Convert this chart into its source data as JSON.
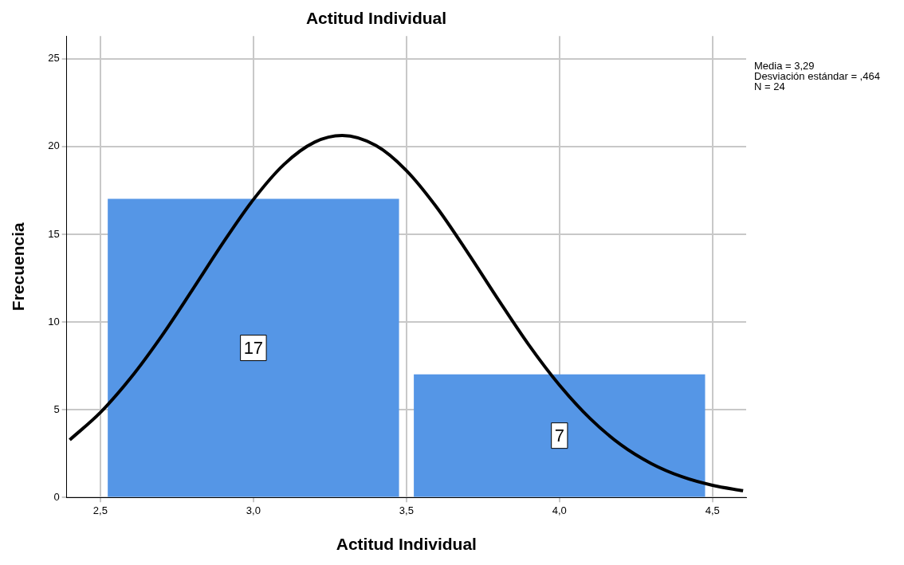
{
  "chart_data": {
    "type": "histogram",
    "title": "Actitud Individual",
    "xlabel": "Actitud Individual",
    "ylabel": "Frecuencia",
    "bins": [
      2.5,
      3.5,
      4.5
    ],
    "values": [
      17,
      7
    ],
    "color": "#5596e6",
    "value_labels": [
      "17",
      "7"
    ],
    "series": [
      {
        "type": "line",
        "color": "#000000",
        "x": [
          2.4,
          2.5,
          2.6,
          2.7,
          2.8,
          2.9,
          3.0,
          3.1,
          3.2,
          3.29,
          3.4,
          3.5,
          3.6,
          3.7,
          3.8,
          3.9,
          4.0,
          4.1,
          4.2,
          4.3,
          4.4,
          4.5,
          4.6
        ],
        "values": [
          3.28,
          4.84,
          6.83,
          9.19,
          11.81,
          14.49,
          16.98,
          18.98,
          20.25,
          20.63,
          20.06,
          18.63,
          16.51,
          13.96,
          11.28,
          8.69,
          6.4,
          4.5,
          3.01,
          1.93,
          1.18,
          0.69,
          0.38
        ]
      }
    ],
    "xlim": [
      2.39,
      4.61
    ],
    "ylim": [
      0,
      26.3
    ],
    "xticks": [
      {
        "value": 2.5,
        "label": "2,5"
      },
      {
        "value": 3.0,
        "label": "3,0"
      },
      {
        "value": 3.5,
        "label": "3,5"
      },
      {
        "value": 4.0,
        "label": "4,0"
      },
      {
        "value": 4.5,
        "label": "4,5"
      }
    ],
    "yticks": [
      0,
      5,
      10,
      15,
      20,
      25
    ],
    "grid": true,
    "legend": false,
    "annotations": [
      "Media = 3,29",
      "Desviación estándar = ,464",
      "N = 24"
    ]
  }
}
